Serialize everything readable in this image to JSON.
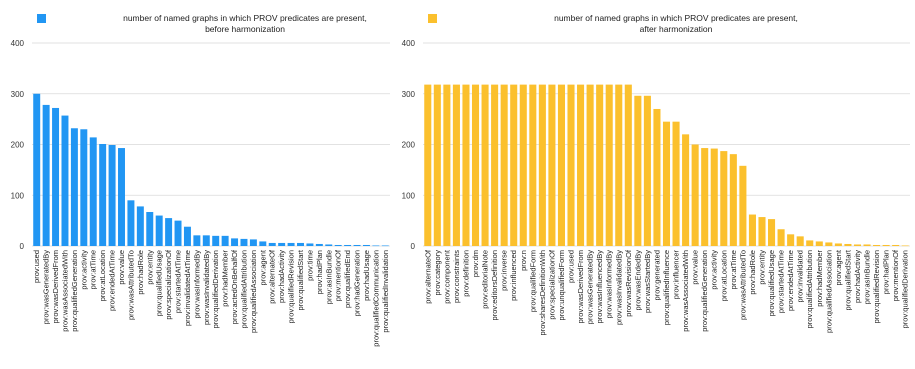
{
  "chart_data": [
    {
      "type": "bar",
      "color": "#2196f3",
      "legend": "number of named graphs in which PROV predicates are present,",
      "legend_line2": "before harmonization",
      "legend_placement": "top",
      "grid": true,
      "ylim": [
        0,
        400
      ],
      "yticks": [
        0,
        100,
        200,
        300,
        400
      ],
      "categories": [
        "prov:used",
        "prov:wasGeneratedBy",
        "prov:wasDerivedFrom",
        "prov:wasAssociatedWith",
        "prov:qualifiedGeneration",
        "prov:activity",
        "prov:atTime",
        "prov:atLocation",
        "prov:endedAtTime",
        "prov:value",
        "prov:wasAttributedTo",
        "prov:hadRole",
        "prov:entity",
        "prov:qualifiedUsage",
        "prov:specializationOf",
        "prov:startedAtTime",
        "prov:invalidatedAtTime",
        "prov:wasInformedBy",
        "prov:wasInvalidatedBy",
        "prov:qualifiedDerivation",
        "prov:hadMember",
        "prov:actedOnBehalfOf",
        "prov:qualifiedAttribution",
        "prov:qualifiedAssociation",
        "prov:agent",
        "prov:alternateOf",
        "prov:hadActivity",
        "prov:qualifiedRevision",
        "prov:qualifiedStart",
        "prov:time",
        "prov:hadPlan",
        "prov:asInBundle",
        "prov:mentionOf",
        "prov:qualifiedEnd",
        "prov:hadGeneration",
        "prov:hadUsage",
        "prov:qualifiedCommunication",
        "prov:qualifiedInvalidation"
      ],
      "values": [
        300,
        278,
        272,
        257,
        232,
        230,
        214,
        201,
        199,
        193,
        90,
        78,
        67,
        60,
        55,
        50,
        38,
        21,
        21,
        20,
        20,
        15,
        14,
        13,
        9,
        6,
        6,
        6,
        6,
        5,
        4,
        3,
        2,
        2,
        2,
        2,
        1,
        1
      ]
    },
    {
      "type": "bar",
      "color": "#fbc02d",
      "legend": "number of named graphs in which PROV predicates are present,",
      "legend_line2": "after harmonization",
      "legend_placement": "top",
      "grid": true,
      "ylim": [
        0,
        400
      ],
      "yticks": [
        0,
        100,
        200,
        300,
        400
      ],
      "categories": [
        "prov:alternateOf",
        "prov:category",
        "prov:component",
        "prov:constraints",
        "prov:definition",
        "prov:dm",
        "prov:editorialNote",
        "prov:editorsDefinition",
        "prov:inverse",
        "prov:influenced",
        "prov:n",
        "prov:qualifiedForm",
        "prov:sharesDefinitionWith",
        "prov:specializationOf",
        "prov:unqualifiedForm",
        "prov:used",
        "prov:wasDerivedFrom",
        "prov:wasGeneratedBy",
        "prov:wasInfluencedBy",
        "prov:wasInformedBy",
        "prov:wasInvalidatedBy",
        "prov:wasRevisionOf",
        "prov:wasEndedBy",
        "prov:wasStartedBy",
        "prov:generated",
        "prov:qualifiedInfluence",
        "prov:influencer",
        "prov:wasAssociatedWith",
        "prov:value",
        "prov:qualifiedGeneration",
        "prov:activity",
        "prov:atLocation",
        "prov:atTime",
        "prov:wasAttributedTo",
        "prov:hadRole",
        "prov:entity",
        "prov:qualifiedUsage",
        "prov:startedAtTime",
        "prov:endedAtTime",
        "prov:invalidated",
        "prov:qualifiedAttribution",
        "prov:hadMember",
        "prov:qualifiedAssociation",
        "prov:agent",
        "prov:qualifiedStart",
        "prov:hadActivity",
        "prov:asInBundle",
        "prov:qualifiedRevision",
        "prov:hadPlan",
        "prov:mentionOf",
        "prov:qualifiedDerivation"
      ],
      "values": [
        318,
        318,
        318,
        318,
        318,
        318,
        318,
        318,
        318,
        318,
        318,
        318,
        318,
        318,
        318,
        318,
        318,
        318,
        318,
        318,
        318,
        318,
        296,
        296,
        270,
        245,
        245,
        220,
        200,
        193,
        192,
        187,
        181,
        158,
        62,
        57,
        53,
        33,
        23,
        19,
        11,
        9,
        7,
        5,
        4,
        3,
        3,
        2,
        2,
        2,
        1
      ]
    }
  ]
}
